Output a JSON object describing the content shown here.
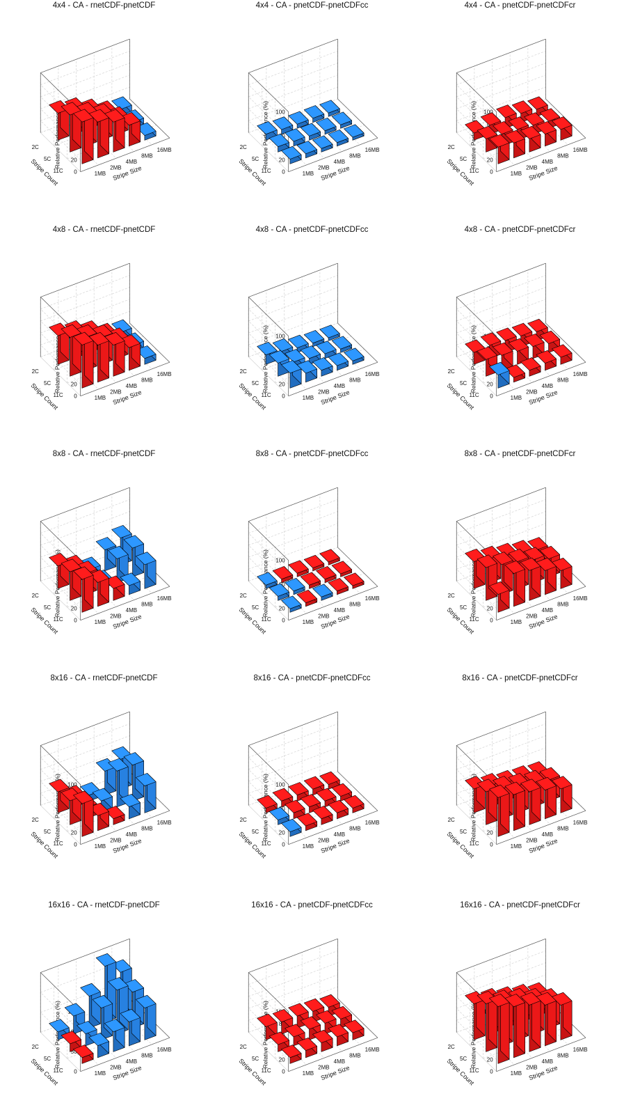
{
  "figure": {
    "axis_labels": {
      "z": "Relative Performance (%)",
      "count": "Stripe Count",
      "size": "Stripe Size"
    },
    "stripe_counts": [
      "2C",
      "5C",
      "11C"
    ],
    "stripe_sizes": [
      "1MB",
      "2MB",
      "4MB",
      "8MB",
      "16MB"
    ],
    "colors": {
      "positive": "#ff1a1a",
      "negative": "#2a8cf5"
    }
  },
  "chart_data": [
    {
      "type": "bar3d",
      "title": "4x4 - CA - rnetCDF-pnetCDF",
      "zlim": [
        0,
        100
      ],
      "zticks": [
        0,
        20,
        40,
        60,
        80,
        100
      ],
      "rows": [
        "2C",
        "5C",
        "11C"
      ],
      "columns": [
        "1MB",
        "2MB",
        "4MB",
        "8MB",
        "16MB"
      ],
      "values": [
        [
          45,
          40,
          28,
          15,
          -12
        ],
        [
          62,
          52,
          40,
          25,
          -10
        ],
        [
          70,
          60,
          50,
          35,
          -8
        ]
      ]
    },
    {
      "type": "bar3d",
      "title": "4x4 - CA - pnetCDF-pnetCDFcc",
      "zlim": [
        0,
        100
      ],
      "zticks": [
        0,
        20,
        40,
        60,
        80,
        100
      ],
      "rows": [
        "2C",
        "5C",
        "11C"
      ],
      "columns": [
        "1MB",
        "2MB",
        "4MB",
        "8MB",
        "16MB"
      ],
      "values": [
        [
          -10,
          -8,
          -7,
          -7,
          -6
        ],
        [
          -9,
          -8,
          -7,
          -6,
          -6
        ],
        [
          -8,
          -7,
          -6,
          -6,
          -5
        ]
      ]
    },
    {
      "type": "bar3d",
      "title": "4x4 - CA - pnetCDF-pnetCDFcr",
      "zlim": [
        0,
        100
      ],
      "zticks": [
        0,
        20,
        40,
        60,
        80,
        100
      ],
      "rows": [
        "2C",
        "5C",
        "11C"
      ],
      "columns": [
        "1MB",
        "2MB",
        "4MB",
        "8MB",
        "16MB"
      ],
      "values": [
        [
          12,
          15,
          18,
          15,
          12
        ],
        [
          22,
          20,
          18,
          15,
          12
        ],
        [
          28,
          25,
          22,
          20,
          18
        ]
      ]
    },
    {
      "type": "bar3d",
      "title": "4x8 - CA - rnetCDF-pnetCDF",
      "zlim": [
        0,
        100
      ],
      "zticks": [
        0,
        20,
        40,
        60,
        80,
        100
      ],
      "rows": [
        "2C",
        "5C",
        "11C"
      ],
      "columns": [
        "1MB",
        "2MB",
        "4MB",
        "8MB",
        "16MB"
      ],
      "values": [
        [
          48,
          42,
          32,
          18,
          -14
        ],
        [
          65,
          55,
          45,
          30,
          -12
        ],
        [
          72,
          62,
          52,
          38,
          -10
        ]
      ]
    },
    {
      "type": "bar3d",
      "title": "4x8 - CA - pnetCDF-pnetCDFcc",
      "zlim": [
        0,
        100
      ],
      "zticks": [
        0,
        20,
        40,
        60,
        80,
        100
      ],
      "rows": [
        "2C",
        "5C",
        "11C"
      ],
      "columns": [
        "1MB",
        "2MB",
        "4MB",
        "8MB",
        "16MB"
      ],
      "values": [
        [
          -16,
          -12,
          -8,
          -6,
          -5
        ],
        [
          -22,
          -14,
          -10,
          -8,
          -6
        ],
        [
          -25,
          -15,
          -10,
          -8,
          -6
        ]
      ]
    },
    {
      "type": "bar3d",
      "title": "4x8 - CA - pnetCDF-pnetCDFcr",
      "zlim": [
        0,
        100
      ],
      "zticks": [
        0,
        20,
        40,
        60,
        80,
        100
      ],
      "rows": [
        "2C",
        "5C",
        "11C"
      ],
      "columns": [
        "1MB",
        "2MB",
        "4MB",
        "8MB",
        "16MB"
      ],
      "values": [
        [
          20,
          22,
          20,
          18,
          15
        ],
        [
          28,
          25,
          22,
          20,
          15
        ],
        [
          -22,
          8,
          10,
          12,
          12
        ]
      ]
    },
    {
      "type": "bar3d",
      "title": "8x8 - CA - rnetCDF-pnetCDF",
      "zlim": [
        0,
        100
      ],
      "zticks": [
        0,
        20,
        40,
        60,
        80,
        100
      ],
      "rows": [
        "2C",
        "5C",
        "11C"
      ],
      "columns": [
        "1MB",
        "2MB",
        "4MB",
        "8MB",
        "16MB"
      ],
      "values": [
        [
          38,
          25,
          -12,
          -35,
          -45
        ],
        [
          48,
          35,
          -10,
          -40,
          -48
        ],
        [
          55,
          40,
          20,
          -15,
          -40
        ]
      ]
    },
    {
      "type": "bar3d",
      "title": "8x8 - CA - pnetCDF-pnetCDFcc",
      "zlim": [
        0,
        100
      ],
      "zticks": [
        0,
        20,
        40,
        60,
        80,
        100
      ],
      "rows": [
        "2C",
        "5C",
        "11C"
      ],
      "columns": [
        "1MB",
        "2MB",
        "4MB",
        "8MB",
        "16MB"
      ],
      "values": [
        [
          -6,
          6,
          6,
          5,
          5
        ],
        [
          -7,
          -6,
          6,
          6,
          5
        ],
        [
          -6,
          6,
          -6,
          6,
          5
        ]
      ]
    },
    {
      "type": "bar3d",
      "title": "8x8 - CA - pnetCDF-pnetCDFcr",
      "zlim": [
        0,
        100
      ],
      "zticks": [
        0,
        20,
        40,
        60,
        80,
        100
      ],
      "rows": [
        "2C",
        "5C",
        "11C"
      ],
      "columns": [
        "1MB",
        "2MB",
        "4MB",
        "8MB",
        "16MB"
      ],
      "values": [
        [
          45,
          40,
          35,
          30,
          25
        ],
        [
          55,
          50,
          45,
          38,
          30
        ],
        [
          30,
          55,
          50,
          40,
          30
        ]
      ]
    },
    {
      "type": "bar3d",
      "title": "8x16 - CA - rnetCDF-pnetCDF",
      "zlim": [
        0,
        100
      ],
      "zticks": [
        0,
        20,
        40,
        60,
        80,
        100
      ],
      "rows": [
        "2C",
        "5C",
        "11C"
      ],
      "columns": [
        "1MB",
        "2MB",
        "4MB",
        "8MB",
        "16MB"
      ],
      "values": [
        [
          35,
          15,
          -10,
          -40,
          -50
        ],
        [
          40,
          18,
          -20,
          -60,
          -60
        ],
        [
          55,
          25,
          10,
          -20,
          -45
        ]
      ]
    },
    {
      "type": "bar3d",
      "title": "8x16 - CA - pnetCDF-pnetCDFcc",
      "zlim": [
        0,
        100
      ],
      "zticks": [
        0,
        20,
        40,
        60,
        80,
        100
      ],
      "rows": [
        "2C",
        "5C",
        "11C"
      ],
      "columns": [
        "1MB",
        "2MB",
        "4MB",
        "8MB",
        "16MB"
      ],
      "values": [
        [
          8,
          10,
          10,
          10,
          8
        ],
        [
          -8,
          10,
          10,
          10,
          8
        ],
        [
          -8,
          8,
          10,
          10,
          8
        ]
      ]
    },
    {
      "type": "bar3d",
      "title": "8x16 - CA - pnetCDF-pnetCDFcr",
      "zlim": [
        0,
        100
      ],
      "zticks": [
        0,
        20,
        40,
        60,
        80,
        100
      ],
      "rows": [
        "2C",
        "5C",
        "11C"
      ],
      "columns": [
        "1MB",
        "2MB",
        "4MB",
        "8MB",
        "16MB"
      ],
      "values": [
        [
          40,
          35,
          30,
          28,
          25
        ],
        [
          55,
          50,
          45,
          40,
          35
        ],
        [
          65,
          60,
          55,
          48,
          40
        ]
      ]
    },
    {
      "type": "bar3d",
      "title": "16x16 - CA - rnetCDF-pnetCDF",
      "zlim": [
        0,
        150
      ],
      "zticks": [
        0,
        50,
        100,
        150
      ],
      "rows": [
        "2C",
        "5C",
        "11C"
      ],
      "columns": [
        "1MB",
        "2MB",
        "4MB",
        "8MB",
        "16MB"
      ],
      "values": [
        [
          -20,
          -45,
          -80,
          -140,
          -110
        ],
        [
          20,
          -30,
          -80,
          -110,
          -90
        ],
        [
          15,
          -30,
          -50,
          -60,
          -80
        ]
      ]
    },
    {
      "type": "bar3d",
      "title": "16x16 - CA - pnetCDF-pnetCDFcc",
      "zlim": [
        0,
        100
      ],
      "zticks": [
        0,
        20,
        40,
        60,
        80,
        100
      ],
      "rows": [
        "2C",
        "5C",
        "11C"
      ],
      "columns": [
        "1MB",
        "2MB",
        "4MB",
        "8MB",
        "16MB"
      ],
      "values": [
        [
          22,
          20,
          20,
          18,
          15
        ],
        [
          12,
          15,
          18,
          18,
          15
        ],
        [
          10,
          12,
          15,
          15,
          12
        ]
      ]
    },
    {
      "type": "bar3d",
      "title": "16x16 - CA - pnetCDF-pnetCDFcr",
      "zlim": [
        0,
        100
      ],
      "zticks": [
        0,
        20,
        40,
        60,
        80,
        100
      ],
      "rows": [
        "2C",
        "5C",
        "11C"
      ],
      "columns": [
        "1MB",
        "2MB",
        "4MB",
        "8MB",
        "16MB"
      ],
      "values": [
        [
          60,
          55,
          48,
          42,
          35
        ],
        [
          80,
          72,
          65,
          55,
          45
        ],
        [
          95,
          85,
          78,
          68,
          58
        ]
      ]
    }
  ]
}
